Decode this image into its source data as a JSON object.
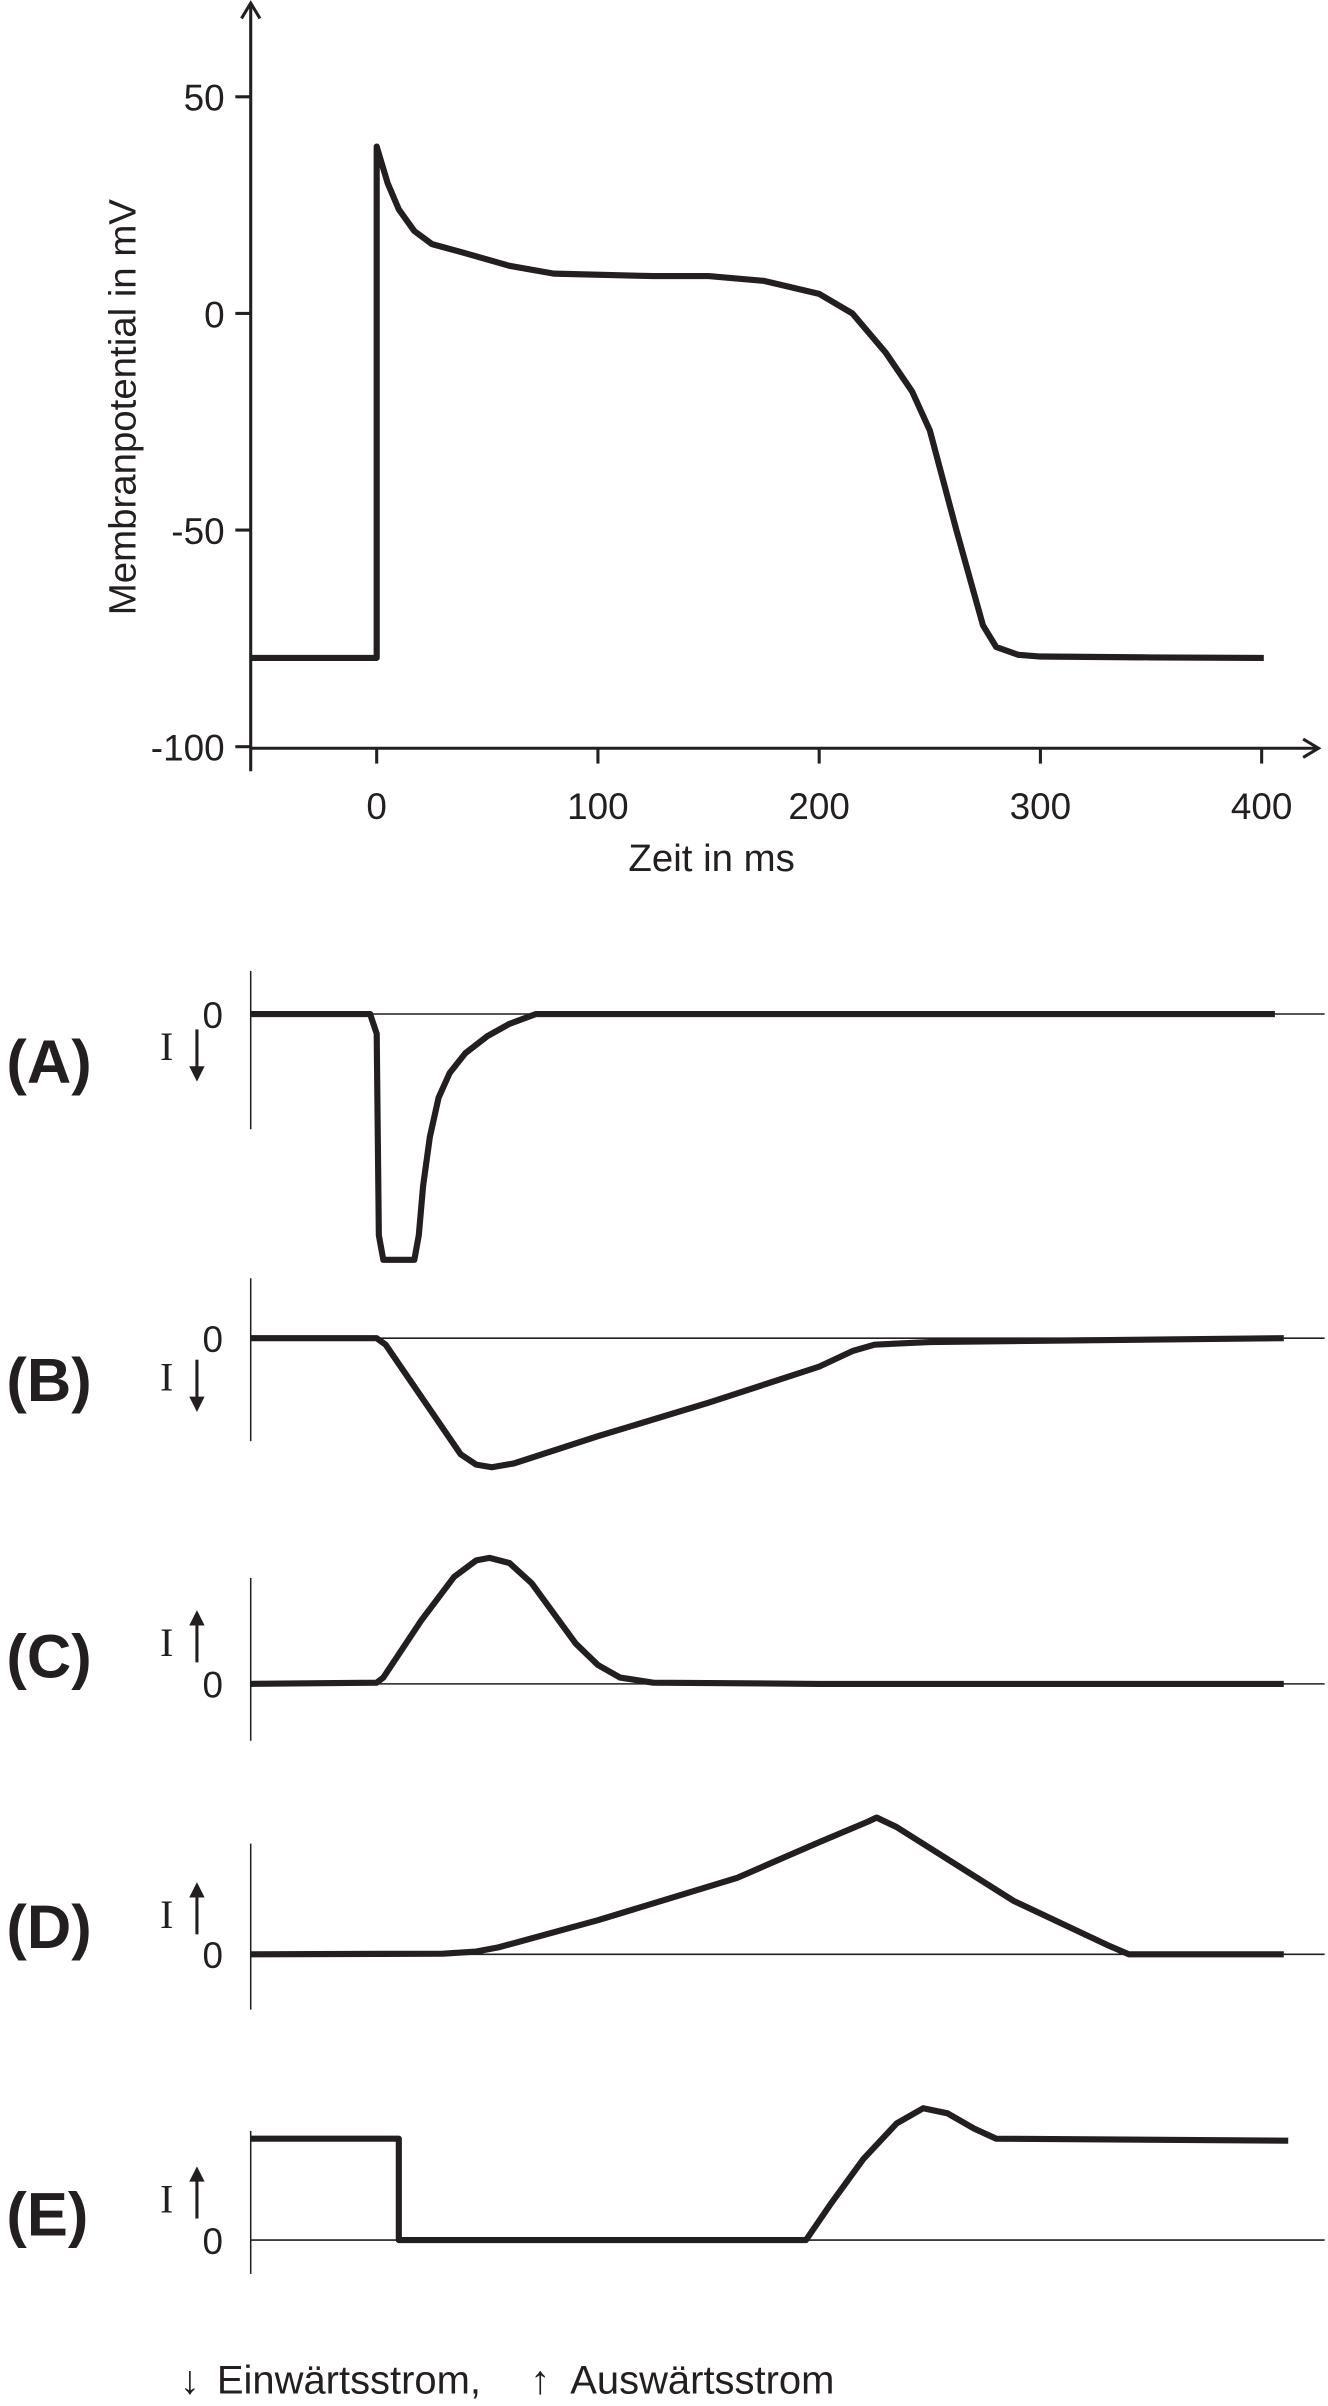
{
  "chart_data": [
    {
      "type": "line",
      "xlabel": "Zeit in ms",
      "ylabel": "Membranpotential in mV",
      "xlim": [
        -57,
        420
      ],
      "ylim": [
        -100,
        65
      ],
      "xticks": [
        0,
        100,
        200,
        300,
        400
      ],
      "xtick_labels": [
        "0",
        "100",
        "200",
        "300",
        "400"
      ],
      "yticks": [
        50,
        0,
        -50,
        -100
      ],
      "ytick_labels": [
        "50",
        "0",
        "-50",
        "-100"
      ],
      "grid": false,
      "series": [
        {
          "x": [
            -57,
            0,
            0,
            5,
            10,
            17,
            25,
            38,
            60,
            80,
            125,
            150,
            175,
            200,
            215,
            230,
            242,
            250,
            262,
            274,
            280,
            290,
            300,
            350,
            401
          ],
          "y": [
            -79.5,
            -79.5,
            38.5,
            30,
            24,
            19,
            16,
            14.2,
            11,
            9.2,
            8.6,
            8.6,
            7.5,
            4.5,
            0,
            -9,
            -18,
            -27,
            -50,
            -72,
            -77,
            -78.8,
            -79.2,
            -79.4,
            -79.5
          ]
        }
      ],
      "color": "#231f20"
    },
    {
      "type": "line",
      "panel_label": "(A)",
      "y_label": "I",
      "direction": "down",
      "zero_label": "0",
      "series": [
        {
          "x": [
            -57,
            -3,
            0,
            1,
            3,
            17,
            19,
            21,
            24,
            28,
            33,
            40,
            50,
            60,
            72,
            406
          ],
          "y": [
            0,
            0,
            -0.08,
            -0.9,
            -1,
            -1,
            -0.9,
            -0.7,
            -0.5,
            -0.34,
            -0.24,
            -0.16,
            -0.09,
            -0.04,
            0,
            0
          ]
        }
      ]
    },
    {
      "type": "line",
      "panel_label": "(B)",
      "y_label": "I",
      "direction": "down",
      "zero_label": "0",
      "series": [
        {
          "x": [
            -57,
            0,
            4,
            20,
            38,
            45,
            52,
            62,
            100,
            150,
            200,
            215,
            225,
            250,
            410
          ],
          "y": [
            0,
            0,
            -0.05,
            -0.45,
            -0.9,
            -0.98,
            -1,
            -0.97,
            -0.76,
            -0.5,
            -0.22,
            -0.1,
            -0.05,
            -0.03,
            0
          ]
        }
      ]
    },
    {
      "type": "line",
      "panel_label": "(C)",
      "y_label": "I",
      "direction": "up",
      "zero_label": "0",
      "series": [
        {
          "x": [
            -57,
            0,
            3,
            20,
            35,
            45,
            51,
            60,
            70,
            90,
            100,
            110,
            125,
            200,
            410
          ],
          "y": [
            0,
            0.01,
            0.05,
            0.5,
            0.85,
            0.98,
            1,
            0.96,
            0.8,
            0.32,
            0.15,
            0.05,
            0.01,
            0,
            0
          ]
        }
      ]
    },
    {
      "type": "line",
      "panel_label": "(D)",
      "y_label": "I",
      "direction": "up",
      "zero_label": "0",
      "series": [
        {
          "x": [
            -57,
            30,
            45,
            55,
            100,
            163,
            200,
            222,
            226,
            235,
            288,
            330,
            340,
            410
          ],
          "y": [
            0,
            0.005,
            0.02,
            0.05,
            0.25,
            0.56,
            0.82,
            0.97,
            1,
            0.93,
            0.39,
            0.07,
            0,
            0
          ]
        }
      ]
    },
    {
      "type": "line",
      "panel_label": "(E)",
      "y_label": "I",
      "direction": "up",
      "zero_label": "0",
      "series": [
        {
          "x": [
            -57,
            10,
            10,
            194,
            205,
            220,
            235,
            247,
            258,
            270,
            280,
            412
          ],
          "y": [
            1,
            1,
            0,
            0,
            0.35,
            0.8,
            1.15,
            1.3,
            1.25,
            1.1,
            1.0,
            0.98
          ]
        }
      ]
    }
  ],
  "legend": {
    "inward_arrow": "↓",
    "inward_label": "Einwärtsstrom,",
    "outward_arrow": "↑",
    "outward_label": "Auswärtsstrom"
  }
}
